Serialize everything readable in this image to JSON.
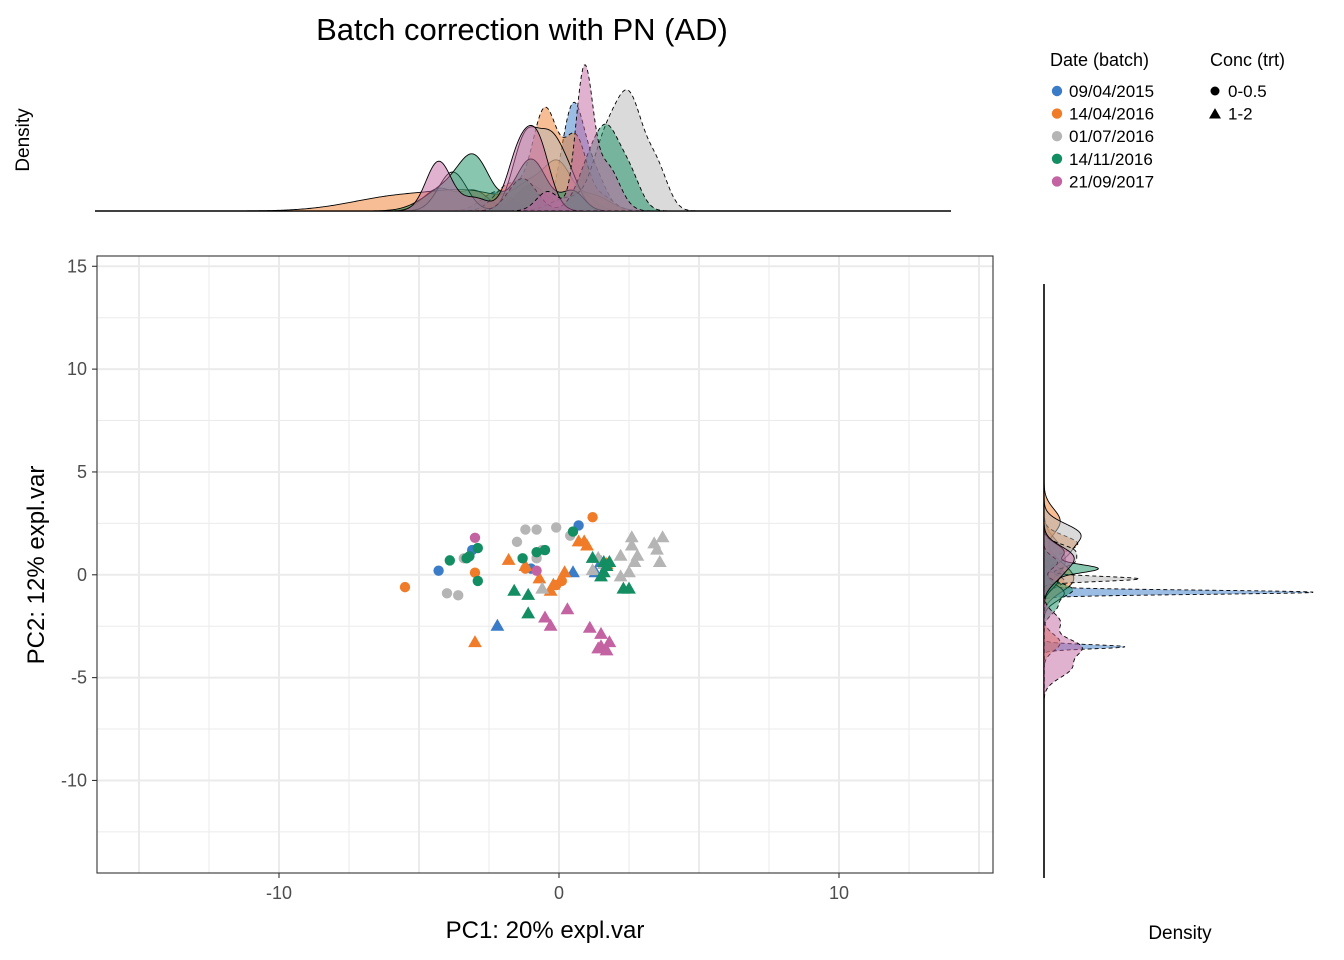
{
  "chart_data": {
    "type": "scatter",
    "title": "Batch correction with PN (AD)",
    "xlabel": "PC1: 20% expl.var",
    "ylabel": "PC2: 12% expl.var",
    "xlim": [
      -16.5,
      15.5
    ],
    "ylim": [
      -14.5,
      15.5
    ],
    "xticks": [
      -10,
      0,
      10
    ],
    "yticks": [
      -10,
      -5,
      0,
      5,
      10,
      15
    ],
    "top_density_label": "Density",
    "right_density_label": "Density",
    "legend": {
      "color_title": "Date (batch)",
      "shape_title": "Conc (trt)",
      "batches": [
        {
          "name": "09/04/2015",
          "color": "#3a7cc7"
        },
        {
          "name": "14/04/2016",
          "color": "#f07c2a"
        },
        {
          "name": "01/07/2016",
          "color": "#b5b5b5"
        },
        {
          "name": "14/11/2016",
          "color": "#138d62"
        },
        {
          "name": "21/09/2017",
          "color": "#c463a2"
        }
      ],
      "treatments": [
        {
          "name": "0-0.5",
          "shape": "circle"
        },
        {
          "name": "1-2",
          "shape": "triangle"
        }
      ]
    },
    "series": [
      {
        "batch": "09/04/2015",
        "trt": "0-0.5",
        "points": [
          [
            -4.3,
            0.2
          ],
          [
            -3.1,
            1.2
          ],
          [
            -1.0,
            0.3
          ],
          [
            0.7,
            2.4
          ]
        ]
      },
      {
        "batch": "09/04/2015",
        "trt": "1-2",
        "points": [
          [
            -2.2,
            -2.5
          ],
          [
            0.5,
            0.1
          ],
          [
            1.3,
            0.1
          ],
          [
            1.5,
            0.6
          ]
        ]
      },
      {
        "batch": "14/04/2016",
        "trt": "0-0.5",
        "points": [
          [
            -5.5,
            -0.6
          ],
          [
            -3.0,
            0.1
          ],
          [
            -0.1,
            -0.5
          ],
          [
            0.1,
            -0.3
          ],
          [
            1.2,
            2.8
          ],
          [
            -1.2,
            0.3
          ]
        ]
      },
      {
        "batch": "14/04/2016",
        "trt": "1-2",
        "points": [
          [
            -3.0,
            -3.3
          ],
          [
            -1.8,
            0.7
          ],
          [
            -1.2,
            0.4
          ],
          [
            -0.7,
            -0.2
          ],
          [
            -0.3,
            -0.8
          ],
          [
            -0.2,
            -0.5
          ],
          [
            0.2,
            0.1
          ],
          [
            0.7,
            1.6
          ],
          [
            0.9,
            1.6
          ],
          [
            1.0,
            1.4
          ],
          [
            1.7,
            0.5
          ]
        ]
      },
      {
        "batch": "01/07/2016",
        "trt": "0-0.5",
        "points": [
          [
            -4.0,
            -0.9
          ],
          [
            -3.6,
            -1.0
          ],
          [
            -3.4,
            0.8
          ],
          [
            -1.5,
            1.6
          ],
          [
            -1.2,
            2.2
          ],
          [
            -0.8,
            2.2
          ],
          [
            -0.8,
            0.8
          ],
          [
            -0.6,
            1.2
          ],
          [
            -0.1,
            2.3
          ],
          [
            0.4,
            1.9
          ]
        ]
      },
      {
        "batch": "01/07/2016",
        "trt": "1-2",
        "points": [
          [
            -0.6,
            -0.7
          ],
          [
            1.2,
            0.2
          ],
          [
            1.4,
            0.8
          ],
          [
            2.2,
            0.9
          ],
          [
            2.6,
            1.4
          ],
          [
            2.6,
            1.8
          ],
          [
            3.4,
            1.5
          ],
          [
            3.7,
            1.8
          ],
          [
            2.2,
            -0.1
          ],
          [
            2.5,
            0.1
          ],
          [
            2.7,
            0.6
          ],
          [
            3.6,
            0.6
          ],
          [
            1.6,
            0.5
          ],
          [
            2.8,
            0.9
          ],
          [
            3.5,
            1.2
          ]
        ]
      },
      {
        "batch": "14/11/2016",
        "trt": "0-0.5",
        "points": [
          [
            -3.9,
            0.7
          ],
          [
            -3.2,
            0.9
          ],
          [
            -2.9,
            1.3
          ],
          [
            -2.9,
            -0.3
          ],
          [
            -1.3,
            0.8
          ],
          [
            -0.8,
            1.1
          ],
          [
            -0.5,
            1.2
          ],
          [
            0.5,
            2.1
          ],
          [
            -3.3,
            0.8
          ]
        ]
      },
      {
        "batch": "14/11/2016",
        "trt": "1-2",
        "points": [
          [
            -1.6,
            -0.8
          ],
          [
            -1.1,
            -1.0
          ],
          [
            -1.1,
            -1.9
          ],
          [
            1.2,
            0.8
          ],
          [
            1.5,
            -0.1
          ],
          [
            1.6,
            0.1
          ],
          [
            1.6,
            0.6
          ],
          [
            1.7,
            0.4
          ],
          [
            1.8,
            0.6
          ],
          [
            2.3,
            -0.7
          ],
          [
            2.5,
            -0.7
          ]
        ]
      },
      {
        "batch": "21/09/2017",
        "trt": "0-0.5",
        "points": [
          [
            -3.0,
            1.8
          ],
          [
            -0.8,
            0.2
          ]
        ]
      },
      {
        "batch": "21/09/2017",
        "trt": "1-2",
        "points": [
          [
            -0.5,
            -2.1
          ],
          [
            -0.3,
            -2.5
          ],
          [
            0.3,
            -1.7
          ],
          [
            1.1,
            -2.6
          ],
          [
            1.4,
            -3.6
          ],
          [
            1.5,
            -2.9
          ],
          [
            1.5,
            -3.5
          ],
          [
            1.7,
            -3.7
          ],
          [
            1.8,
            -3.3
          ]
        ]
      }
    ],
    "top_densities": [
      {
        "batch": "09/04/2015",
        "trt": "0-0.5",
        "color": "#3a7cc7",
        "peaks": [
          [
            -4.3,
            0.17,
            0.55
          ],
          [
            -3.0,
            0.15,
            0.5
          ],
          [
            -1.0,
            0.2,
            0.5
          ],
          [
            0.7,
            0.15,
            0.5
          ]
        ]
      },
      {
        "batch": "09/04/2015",
        "trt": "1-2",
        "color": "#3a7cc7",
        "peaks": [
          [
            -2.2,
            0.15,
            0.55
          ],
          [
            0.5,
            0.8,
            0.4
          ],
          [
            1.3,
            0.25,
            0.4
          ]
        ]
      },
      {
        "batch": "14/04/2016",
        "trt": "0-0.5",
        "color": "#f07c2a",
        "peaks": [
          [
            -5.5,
            0.12,
            1.8
          ],
          [
            -3.0,
            0.11,
            1.2
          ],
          [
            -0.9,
            0.2,
            0.6
          ],
          [
            0.0,
            0.3,
            0.45
          ],
          [
            1.2,
            0.12,
            0.6
          ]
        ]
      },
      {
        "batch": "14/04/2016",
        "trt": "1-2",
        "color": "#f07c2a",
        "peaks": [
          [
            -1.8,
            0.2,
            0.5
          ],
          [
            -0.5,
            0.78,
            0.45
          ],
          [
            0.6,
            0.55,
            0.4
          ],
          [
            1.6,
            0.1,
            0.4
          ]
        ]
      },
      {
        "batch": "01/07/2016",
        "trt": "0-0.5",
        "color": "#b5b5b5",
        "peaks": [
          [
            -3.8,
            0.3,
            0.5
          ],
          [
            -1.2,
            0.55,
            0.45
          ],
          [
            -0.3,
            0.5,
            0.45
          ],
          [
            0.4,
            0.2,
            0.4
          ]
        ]
      },
      {
        "batch": "01/07/2016",
        "trt": "1-2",
        "color": "#b5b5b5",
        "peaks": [
          [
            0.3,
            0.1,
            0.6
          ],
          [
            1.6,
            0.45,
            0.45
          ],
          [
            2.5,
            0.85,
            0.5
          ],
          [
            3.5,
            0.3,
            0.4
          ]
        ]
      },
      {
        "batch": "14/11/2016",
        "trt": "0-0.5",
        "color": "#138d62",
        "peaks": [
          [
            -4.0,
            0.18,
            0.8
          ],
          [
            -3.0,
            0.35,
            0.55
          ],
          [
            -1.0,
            0.4,
            0.55
          ],
          [
            0.5,
            0.15,
            0.4
          ]
        ]
      },
      {
        "batch": "14/11/2016",
        "trt": "1-2",
        "color": "#138d62",
        "peaks": [
          [
            -1.3,
            0.25,
            0.5
          ],
          [
            1.2,
            0.4,
            0.5
          ],
          [
            1.8,
            0.4,
            0.4
          ],
          [
            2.5,
            0.28,
            0.4
          ]
        ]
      },
      {
        "batch": "21/09/2017",
        "trt": "0-0.5",
        "color": "#c463a2",
        "peaks": [
          [
            -4.3,
            0.38,
            0.45
          ],
          [
            -3.0,
            0.1,
            0.5
          ],
          [
            -1.5,
            0.35,
            0.4
          ],
          [
            -0.8,
            0.55,
            0.45
          ]
        ]
      },
      {
        "batch": "21/09/2017",
        "trt": "1-2",
        "color": "#c463a2",
        "peaks": [
          [
            -0.4,
            0.15,
            0.4
          ],
          [
            0.9,
            1.05,
            0.3
          ],
          [
            1.7,
            0.35,
            0.45
          ]
        ]
      }
    ],
    "right_densities": [
      {
        "batch": "09/04/2015",
        "trt": "0-0.5",
        "color": "#3a7cc7",
        "peaks": [
          [
            1.2,
            0.12,
            0.6
          ],
          [
            0.3,
            0.1,
            0.5
          ]
        ]
      },
      {
        "batch": "09/04/2015",
        "trt": "1-2",
        "color": "#3a7cc7",
        "peaks": [
          [
            -0.85,
            2.0,
            0.1
          ],
          [
            -3.5,
            0.6,
            0.1
          ],
          [
            0.1,
            0.15,
            0.3
          ]
        ]
      },
      {
        "batch": "14/04/2016",
        "trt": "0-0.5",
        "color": "#f07c2a",
        "peaks": [
          [
            2.6,
            0.12,
            0.6
          ],
          [
            0.2,
            0.15,
            0.6
          ],
          [
            -0.5,
            0.12,
            0.5
          ]
        ]
      },
      {
        "batch": "14/04/2016",
        "trt": "1-2",
        "color": "#f07c2a",
        "peaks": [
          [
            -0.3,
            0.15,
            0.3
          ],
          [
            -3.3,
            0.12,
            0.4
          ],
          [
            1.5,
            0.25,
            0.4
          ]
        ]
      },
      {
        "batch": "01/07/2016",
        "trt": "0-0.5",
        "color": "#b5b5b5",
        "peaks": [
          [
            2.0,
            0.25,
            0.5
          ],
          [
            1.0,
            0.15,
            0.5
          ],
          [
            -0.9,
            0.15,
            0.4
          ]
        ]
      },
      {
        "batch": "01/07/2016",
        "trt": "1-2",
        "color": "#b5b5b5",
        "peaks": [
          [
            -0.2,
            0.7,
            0.12
          ],
          [
            1.2,
            0.2,
            0.3
          ],
          [
            0.6,
            0.2,
            0.3
          ]
        ]
      },
      {
        "batch": "14/11/2016",
        "trt": "0-0.5",
        "color": "#138d62",
        "peaks": [
          [
            0.3,
            0.35,
            0.2
          ],
          [
            1.1,
            0.15,
            0.4
          ],
          [
            -0.3,
            0.1,
            0.4
          ]
        ]
      },
      {
        "batch": "14/11/2016",
        "trt": "1-2",
        "color": "#138d62",
        "peaks": [
          [
            -0.7,
            0.2,
            0.3
          ],
          [
            -1.5,
            0.1,
            0.4
          ],
          [
            0.6,
            0.1,
            0.3
          ]
        ]
      },
      {
        "batch": "21/09/2017",
        "trt": "0-0.5",
        "color": "#c463a2",
        "peaks": [
          [
            0.9,
            0.2,
            0.5
          ],
          [
            0.0,
            0.1,
            0.5
          ]
        ]
      },
      {
        "batch": "21/09/2017",
        "trt": "1-2",
        "color": "#c463a2",
        "peaks": [
          [
            -2.3,
            0.12,
            0.45
          ],
          [
            -3.5,
            0.25,
            0.4
          ],
          [
            -4.5,
            0.2,
            0.5
          ]
        ]
      }
    ]
  }
}
